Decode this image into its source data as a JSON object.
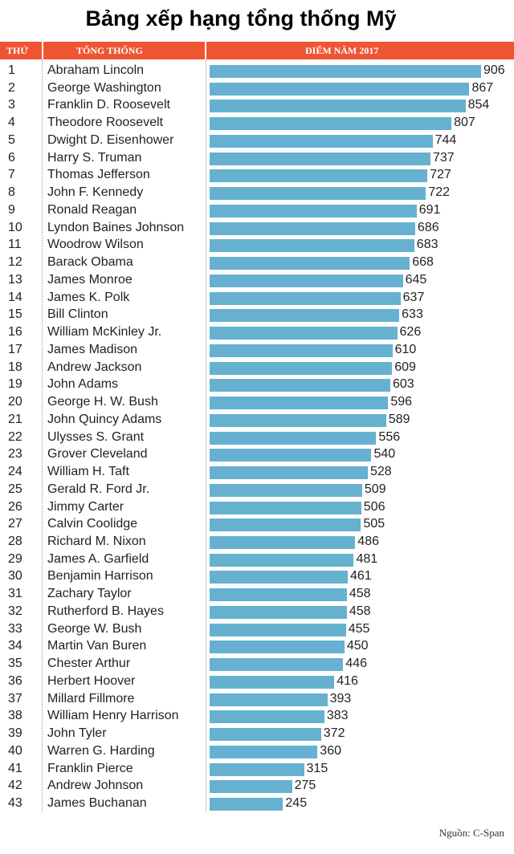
{
  "title": "Bảng xếp hạng tổng thống Mỹ",
  "colors": {
    "header": "#ef5533",
    "bar": "#66b1d0"
  },
  "chart_data": {
    "type": "bar",
    "orientation": "horizontal",
    "title": "Bảng xếp hạng tổng thống Mỹ",
    "columns": {
      "rank": "Thứ",
      "name": "Tổng thống",
      "score": "Điểm năm 2017"
    },
    "xlim": [
      0,
      906
    ],
    "rows": [
      {
        "rank": "1",
        "name": "Abraham Lincoln",
        "value": 906
      },
      {
        "rank": "2",
        "name": "George Washington",
        "value": 867
      },
      {
        "rank": "3",
        "name": "Franklin D. Roosevelt",
        "value": 854
      },
      {
        "rank": "4",
        "name": "Theodore Roosevelt",
        "value": 807
      },
      {
        "rank": "5",
        "name": "Dwight D. Eisenhower",
        "value": 744
      },
      {
        "rank": "6",
        "name": "Harry S. Truman",
        "value": 737
      },
      {
        "rank": "7",
        "name": "Thomas Jefferson",
        "value": 727
      },
      {
        "rank": "8",
        "name": "John F. Kennedy",
        "value": 722
      },
      {
        "rank": "9",
        "name": "Ronald Reagan",
        "value": 691
      },
      {
        "rank": "10",
        "name": "Lyndon Baines Johnson",
        "value": 686
      },
      {
        "rank": "11",
        "name": "Woodrow Wilson",
        "value": 683
      },
      {
        "rank": "12",
        "name": "Barack Obama",
        "value": 668
      },
      {
        "rank": "13",
        "name": "James Monroe",
        "value": 645
      },
      {
        "rank": "14",
        "name": "James K. Polk",
        "value": 637
      },
      {
        "rank": "15",
        "name": "Bill Clinton",
        "value": 633
      },
      {
        "rank": "16",
        "name": "William McKinley Jr.",
        "value": 626
      },
      {
        "rank": "17",
        "name": "James Madison",
        "value": 610
      },
      {
        "rank": "18",
        "name": "Andrew Jackson",
        "value": 609
      },
      {
        "rank": "19",
        "name": "John Adams",
        "value": 603
      },
      {
        "rank": "20",
        "name": "George H. W. Bush",
        "value": 596
      },
      {
        "rank": "21",
        "name": "John Quincy Adams",
        "value": 589
      },
      {
        "rank": "22",
        "name": "Ulysses S. Grant",
        "value": 556
      },
      {
        "rank": "23",
        "name": "Grover Cleveland",
        "value": 540
      },
      {
        "rank": "24",
        "name": "William H. Taft",
        "value": 528
      },
      {
        "rank": "25",
        "name": "Gerald R. Ford Jr.",
        "value": 509
      },
      {
        "rank": "26",
        "name": "Jimmy Carter",
        "value": 506
      },
      {
        "rank": "27",
        "name": "Calvin Coolidge",
        "value": 505
      },
      {
        "rank": "28",
        "name": "Richard M. Nixon",
        "value": 486
      },
      {
        "rank": "29",
        "name": "James A. Garfield",
        "value": 481
      },
      {
        "rank": "30",
        "name": "Benjamin Harrison",
        "value": 461
      },
      {
        "rank": "31",
        "name": "Zachary Taylor",
        "value": 458
      },
      {
        "rank": "32",
        "name": "Rutherford B. Hayes",
        "value": 458
      },
      {
        "rank": "33",
        "name": "George W. Bush",
        "value": 455
      },
      {
        "rank": "34",
        "name": "Martin Van Buren",
        "value": 450
      },
      {
        "rank": "35",
        "name": "Chester Arthur",
        "value": 446
      },
      {
        "rank": "36",
        "name": "Herbert Hoover",
        "value": 416
      },
      {
        "rank": "37",
        "name": "Millard Fillmore",
        "value": 393
      },
      {
        "rank": "38",
        "name": "William Henry Harrison",
        "value": 383
      },
      {
        "rank": "39",
        "name": "John Tyler",
        "value": 372
      },
      {
        "rank": "40",
        "name": "Warren G. Harding",
        "value": 360
      },
      {
        "rank": "41",
        "name": "Franklin Pierce",
        "value": 315
      },
      {
        "rank": "42",
        "name": "Andrew Johnson",
        "value": 275
      },
      {
        "rank": "43",
        "name": "James Buchanan",
        "value": 245
      }
    ],
    "source": "Nguồn: C-Span"
  }
}
